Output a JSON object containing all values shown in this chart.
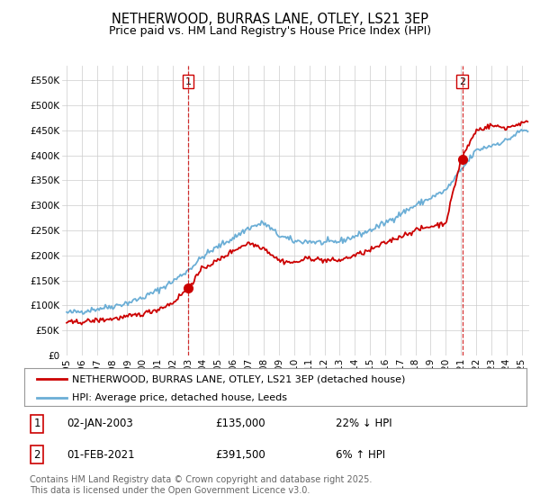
{
  "title": "NETHERWOOD, BURRAS LANE, OTLEY, LS21 3EP",
  "subtitle": "Price paid vs. HM Land Registry's House Price Index (HPI)",
  "ylabel_ticks": [
    "£0",
    "£50K",
    "£100K",
    "£150K",
    "£200K",
    "£250K",
    "£300K",
    "£350K",
    "£400K",
    "£450K",
    "£500K",
    "£550K"
  ],
  "ytick_values": [
    0,
    50000,
    100000,
    150000,
    200000,
    250000,
    300000,
    350000,
    400000,
    450000,
    500000,
    550000
  ],
  "ylim": [
    0,
    580000
  ],
  "xlim_start": 1994.7,
  "xlim_end": 2025.5,
  "sale1_x": 2003.0,
  "sale1_y": 135000,
  "sale1_label": "1",
  "sale2_x": 2021.08,
  "sale2_y": 391500,
  "sale2_label": "2",
  "hpi_color": "#6baed6",
  "price_color": "#cc0000",
  "vline_color": "#cc0000",
  "background_color": "#ffffff",
  "grid_color": "#cccccc",
  "legend1_text": "NETHERWOOD, BURRAS LANE, OTLEY, LS21 3EP (detached house)",
  "legend2_text": "HPI: Average price, detached house, Leeds",
  "footer": "Contains HM Land Registry data © Crown copyright and database right 2025.\nThis data is licensed under the Open Government Licence v3.0.",
  "title_fontsize": 10.5,
  "subtitle_fontsize": 9,
  "tick_fontsize": 7.5,
  "legend_fontsize": 8,
  "annotation_fontsize": 8.5,
  "footer_fontsize": 7,
  "hpi_base": [
    85000,
    88000,
    93000,
    98000,
    105000,
    115000,
    130000,
    148000,
    170000,
    198000,
    218000,
    235000,
    255000,
    265000,
    240000,
    228000,
    228000,
    225000,
    228000,
    238000,
    250000,
    265000,
    283000,
    300000,
    315000,
    330000,
    370000,
    410000,
    420000,
    430000,
    450000
  ],
  "price_base": [
    65000,
    67000,
    70000,
    73000,
    77000,
    83000,
    92000,
    105000,
    135000,
    175000,
    190000,
    210000,
    225000,
    215000,
    190000,
    185000,
    195000,
    190000,
    190000,
    200000,
    210000,
    225000,
    238000,
    250000,
    258000,
    265000,
    391500,
    450000,
    460000,
    455000,
    465000
  ],
  "hpi_noise_scale": 3000,
  "price_noise_scale": 2500
}
